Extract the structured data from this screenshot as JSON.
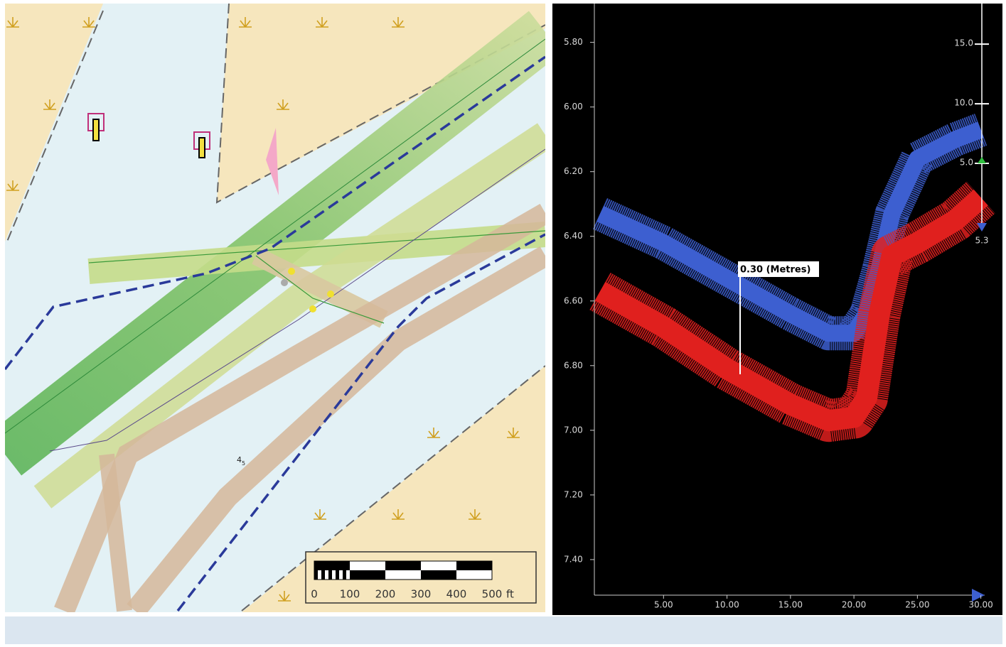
{
  "map": {
    "scale_bar": {
      "labels": [
        "0",
        "100",
        "200",
        "300",
        "400",
        "500"
      ],
      "unit": "ft"
    },
    "sounding": {
      "depth": "4",
      "sub": "5"
    }
  },
  "profile": {
    "annotation": "0.30 (Metres)",
    "x": [
      0,
      5,
      10,
      15,
      18,
      20,
      21,
      22,
      23,
      25,
      28,
      30
    ],
    "series": [
      {
        "color": "#3d5fd0",
        "values": [
          6.33,
          6.42,
          6.53,
          6.64,
          6.7,
          6.7,
          6.64,
          6.5,
          6.33,
          6.16,
          6.1,
          6.07
        ]
      },
      {
        "color": "#e0201e",
        "values": [
          6.57,
          6.68,
          6.81,
          6.92,
          6.97,
          6.96,
          6.9,
          6.64,
          6.46,
          6.42,
          6.35,
          6.28
        ]
      }
    ],
    "xlim": [
      -0.45,
      30.3
    ],
    "ylim": [
      5.68,
      7.51
    ],
    "xticks": [
      {
        "value": 5,
        "label": "5.00"
      },
      {
        "value": 10,
        "label": "10.00"
      },
      {
        "value": 15,
        "label": "15.00"
      },
      {
        "value": 20,
        "label": "20.00"
      },
      {
        "value": 25,
        "label": "25.00"
      },
      {
        "value": 30,
        "label": "30.00"
      }
    ],
    "yticks": [
      {
        "value": 5.8,
        "label": "5.80"
      },
      {
        "value": 6.0,
        "label": "6.00"
      },
      {
        "value": 6.2,
        "label": "6.20"
      },
      {
        "value": 6.4,
        "label": "6.40"
      },
      {
        "value": 6.6,
        "label": "6.60"
      },
      {
        "value": 6.8,
        "label": "6.80"
      },
      {
        "value": 7.0,
        "label": "7.00"
      },
      {
        "value": 7.2,
        "label": "7.20"
      },
      {
        "value": 7.4,
        "label": "7.40"
      }
    ],
    "y2lim": [
      -31.2,
      18.4
    ],
    "y2ticks": [
      {
        "value": 15,
        "label": "15.0"
      },
      {
        "value": 10,
        "label": "10.0"
      },
      {
        "value": 5,
        "label": "5.0"
      }
    ],
    "cursor_value": 5.3
  }
}
